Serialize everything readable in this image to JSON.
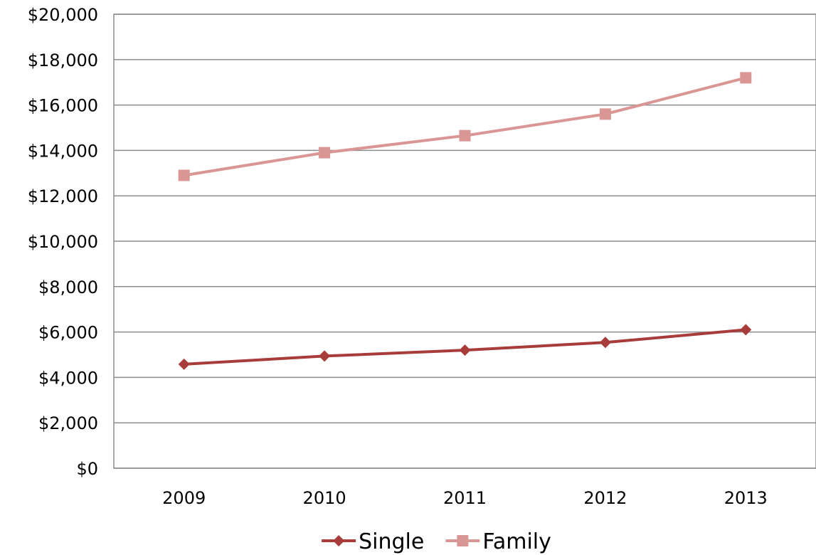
{
  "chart_data": {
    "type": "line",
    "title": "",
    "xlabel": "",
    "ylabel": "",
    "categories": [
      "2009",
      "2010",
      "2011",
      "2012",
      "2013"
    ],
    "ylim": [
      0,
      20000
    ],
    "y_ticks": [
      0,
      2000,
      4000,
      6000,
      8000,
      10000,
      12000,
      14000,
      16000,
      18000,
      20000
    ],
    "y_tick_labels": [
      "$0",
      "$2,000",
      "$4,000",
      "$6,000",
      "$8,000",
      "$10,000",
      "$12,000",
      "$14,000",
      "$16,000",
      "$18,000",
      "$20,000"
    ],
    "grid": true,
    "legend_position": "bottom",
    "series": [
      {
        "name": "Single",
        "values": [
          4580,
          4940,
          5200,
          5540,
          6100
        ],
        "color": "#a83c3a",
        "marker": "diamond"
      },
      {
        "name": "Family",
        "values": [
          12900,
          13900,
          14650,
          15600,
          17200
        ],
        "color": "#d99694",
        "marker": "square"
      }
    ]
  }
}
